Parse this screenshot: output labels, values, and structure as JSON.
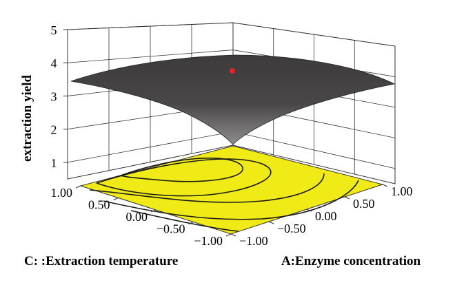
{
  "chart_data": {
    "type": "surface3d",
    "title": "",
    "zlabel": "extraction yield",
    "xlabel": "A:Enzyme concentration",
    "ylabel": "C: :Extraction temperature",
    "z_ticks": [
      "1",
      "2",
      "3",
      "4",
      "5"
    ],
    "z_range": [
      1,
      5
    ],
    "x_ticks": [
      "−1.00",
      "−0.50",
      "0.00",
      "0.50",
      "1.00"
    ],
    "y_ticks": [
      "−1.00",
      "−0.50",
      "0.00",
      "0.50",
      "1.00"
    ],
    "x_range": [
      -1,
      1
    ],
    "y_range": [
      -1,
      1
    ],
    "surface_corners": {
      "A_minus1_C_minus1": 1.4,
      "A_plus1_C_minus1": 3.7,
      "A_plus1_C_plus1": 4.3,
      "A_minus1_C_plus1": 3.5
    },
    "design_point": {
      "A": 0.0,
      "C": 0.6,
      "yield": 4.15,
      "color": "#e8242a"
    },
    "surface_color": "#3c3a3b",
    "floor_contour_color": "#f0ea16"
  }
}
